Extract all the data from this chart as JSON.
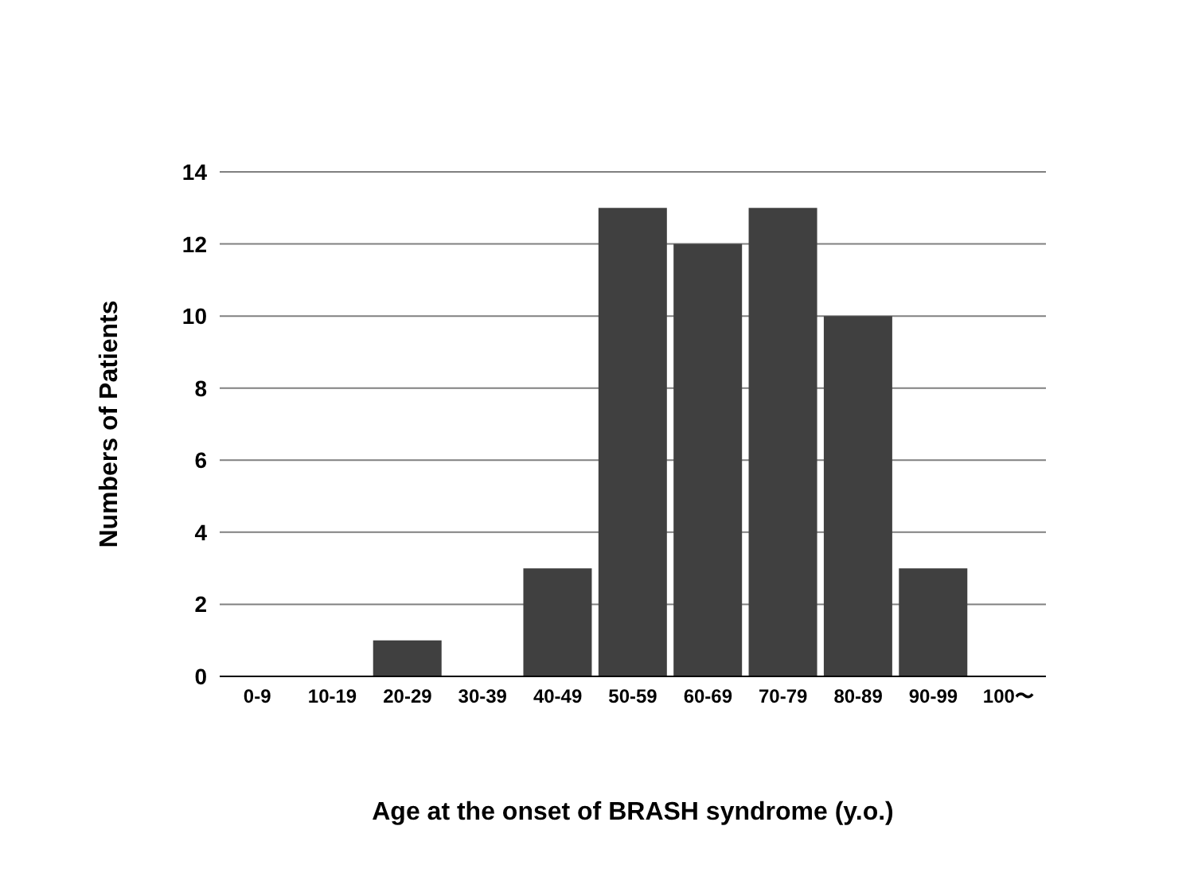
{
  "chart_data": {
    "type": "bar",
    "xlabel": "Age at the onset of BRASH syndrome (y.o.)",
    "ylabel": "Numbers of Patients",
    "categories": [
      "0-9",
      "10-19",
      "20-29",
      "30-39",
      "40-49",
      "50-59",
      "60-69",
      "70-79",
      "80-89",
      "90-99",
      "100〜"
    ],
    "values": [
      0,
      0,
      1,
      0,
      3,
      13,
      12,
      13,
      10,
      3,
      0
    ],
    "color": "#404040",
    "ylim": [
      0,
      14
    ],
    "yticks": [
      0,
      2,
      4,
      6,
      8,
      10,
      12,
      14
    ],
    "grid": "y"
  }
}
